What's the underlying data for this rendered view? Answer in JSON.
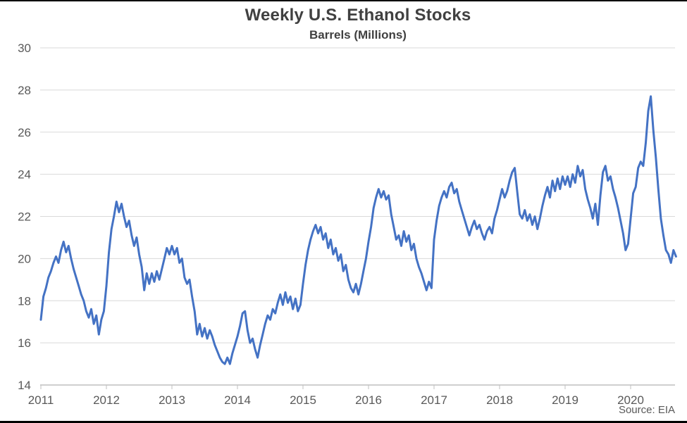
{
  "figure": {
    "title": "Weekly U.S. Ethanol Stocks",
    "subtitle": "Barrels (Millions)",
    "source": "Source: EIA"
  },
  "colors": {
    "line": "#4472C4",
    "gridline": "#D9D9D9",
    "axis": "#BFBFBF",
    "tick_label": "#595959",
    "title_text": "#404040",
    "border": "#000000"
  },
  "chart_data": {
    "type": "line",
    "title": "Weekly U.S. Ethanol Stocks",
    "subtitle": "Barrels (Millions)",
    "xlabel": "",
    "ylabel": "Barrels (Millions)",
    "ylim": [
      14,
      30
    ],
    "y_ticks": [
      14,
      16,
      18,
      20,
      22,
      24,
      26,
      28,
      30
    ],
    "x_ticks": [
      2011,
      2012,
      2013,
      2014,
      2015,
      2016,
      2017,
      2018,
      2019,
      2020
    ],
    "xlim": [
      2011.0,
      2020.75
    ],
    "grid": "horizontal",
    "legend_position": "none",
    "x_start": 2011.0,
    "x_step_years": 0.0384615,
    "series": [
      {
        "name": "U.S. ethanol stocks (million barrels, weekly)",
        "values": [
          17.1,
          18.2,
          18.6,
          19.1,
          19.4,
          19.8,
          20.1,
          19.8,
          20.4,
          20.8,
          20.3,
          20.6,
          20.0,
          19.5,
          19.1,
          18.7,
          18.3,
          18.0,
          17.5,
          17.2,
          17.6,
          16.9,
          17.3,
          16.4,
          17.1,
          17.5,
          18.7,
          20.3,
          21.4,
          22.0,
          22.7,
          22.2,
          22.6,
          22.0,
          21.5,
          21.8,
          21.1,
          20.6,
          21.0,
          20.2,
          19.6,
          18.5,
          19.3,
          18.8,
          19.3,
          18.9,
          19.4,
          19.0,
          19.5,
          20.0,
          20.5,
          20.2,
          20.6,
          20.2,
          20.5,
          19.8,
          20.0,
          19.1,
          18.8,
          19.0,
          18.2,
          17.5,
          16.4,
          16.9,
          16.3,
          16.7,
          16.2,
          16.6,
          16.3,
          15.9,
          15.6,
          15.3,
          15.1,
          15.0,
          15.3,
          15.0,
          15.5,
          15.9,
          16.3,
          16.8,
          17.4,
          17.5,
          16.6,
          16.0,
          16.2,
          15.7,
          15.3,
          15.9,
          16.4,
          16.9,
          17.3,
          17.1,
          17.6,
          17.4,
          17.9,
          18.3,
          17.8,
          18.4,
          17.9,
          18.2,
          17.6,
          18.1,
          17.5,
          17.8,
          18.8,
          19.7,
          20.4,
          20.9,
          21.3,
          21.6,
          21.2,
          21.5,
          20.9,
          21.2,
          20.5,
          20.9,
          20.2,
          20.5,
          19.9,
          20.2,
          19.4,
          19.7,
          19.0,
          18.6,
          18.4,
          18.8,
          18.3,
          18.8,
          19.4,
          20.0,
          20.8,
          21.5,
          22.4,
          22.9,
          23.3,
          22.9,
          23.2,
          22.8,
          23.0,
          22.1,
          21.5,
          20.9,
          21.1,
          20.6,
          21.3,
          20.8,
          21.1,
          20.4,
          20.7,
          20.0,
          19.6,
          19.3,
          18.9,
          18.5,
          18.9,
          18.6,
          20.9,
          21.8,
          22.5,
          22.9,
          23.2,
          22.9,
          23.4,
          23.6,
          23.1,
          23.3,
          22.7,
          22.3,
          21.9,
          21.5,
          21.1,
          21.5,
          21.8,
          21.4,
          21.6,
          21.2,
          20.9,
          21.3,
          21.5,
          21.2,
          21.9,
          22.3,
          22.8,
          23.3,
          22.9,
          23.2,
          23.7,
          24.1,
          24.3,
          23.2,
          22.1,
          21.9,
          22.3,
          21.8,
          22.1,
          21.6,
          22.0,
          21.4,
          21.9,
          22.5,
          23.0,
          23.4,
          22.9,
          23.7,
          23.2,
          23.8,
          23.3,
          23.9,
          23.5,
          23.9,
          23.4,
          24.0,
          23.6,
          24.4,
          23.9,
          24.2,
          23.3,
          22.8,
          22.4,
          21.9,
          22.6,
          21.6,
          23.0,
          24.1,
          24.4,
          23.7,
          23.9,
          23.3,
          22.9,
          22.4,
          21.8,
          21.2,
          20.4,
          20.7,
          21.9,
          23.1,
          23.4,
          24.3,
          24.6,
          24.4,
          25.5,
          27.0,
          27.7,
          26.1,
          24.8,
          23.3,
          21.9,
          21.1,
          20.4,
          20.2,
          19.8,
          20.4,
          20.1
        ]
      }
    ]
  }
}
